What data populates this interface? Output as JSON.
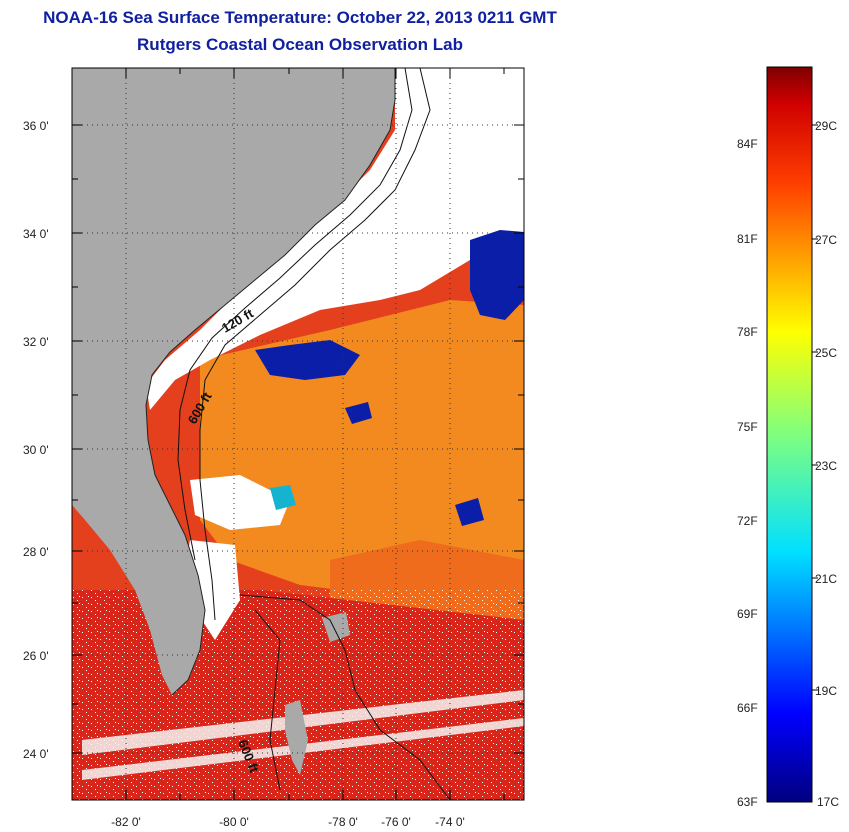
{
  "header": {
    "title_line1": "NOAA-16 Sea Surface Temperature:  October 22, 2013 0211 GMT",
    "title_line2": "Rutgers Coastal Ocean Observation Lab"
  },
  "map": {
    "lon_labels": [
      "-82 0'",
      "-80 0'",
      "-78 0'",
      "-76 0'",
      "-74 0'"
    ],
    "lat_labels": [
      "36 0'",
      "34 0'",
      "32 0'",
      "30 0'",
      "28 0'",
      "26 0'",
      "24 0'"
    ],
    "contour_labels": [
      "120 ft",
      "600 ft",
      "600 ft"
    ],
    "colors": {
      "land": "#a9a9a9",
      "cloud": "#ffffff",
      "warm_ocean": "#e83a1c",
      "mid_ocean": "#f07d1a",
      "cold_patch": "#0a14a0"
    }
  },
  "colorbar": {
    "fahrenheit_labels": [
      "84F",
      "81F",
      "78F",
      "75F",
      "72F",
      "69F",
      "66F",
      "63F"
    ],
    "celsius_labels": [
      "29C",
      "27C",
      "25C",
      "23C",
      "21C",
      "19C",
      "17C"
    ]
  }
}
